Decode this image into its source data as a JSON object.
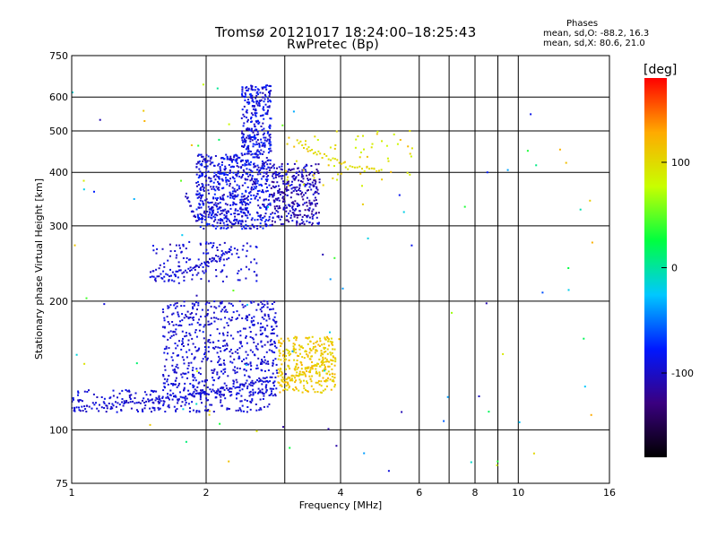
{
  "header": {
    "title": "Tromsø 20121017 18:24:00–18:25:43",
    "subtitle": "RwPretec (Bp)",
    "phase_title": "Phases",
    "phase_o": "mean, sd,O: -88.2, 16.3",
    "phase_x": "mean, sd,X:  80.6, 21.0"
  },
  "colorbar": {
    "unit": "[deg]",
    "range": [
      -180,
      180
    ],
    "ticks": [
      100,
      0,
      -100
    ],
    "stops": [
      "#000000",
      "#3a0080",
      "#0018ff",
      "#00c8ff",
      "#00ff40",
      "#c8ff00",
      "#ffaa00",
      "#ff0000"
    ]
  },
  "chart_data": {
    "type": "scatter",
    "title": "Tromsø 20121017 18:24:00–18:25:43",
    "subtitle": "RwPretec (Bp)",
    "xlabel": "Frequency [MHz]",
    "ylabel": "Stationary phase Virtual Height [km]",
    "xscale": "log",
    "yscale": "log",
    "xlim": [
      1,
      16
    ],
    "ylim": [
      75,
      750
    ],
    "xticks": [
      1,
      2,
      4,
      6,
      8,
      10,
      16
    ],
    "xtick_labels": [
      "1",
      "2",
      "4",
      "6",
      "8",
      "10",
      "16"
    ],
    "xgrid": [
      2,
      3,
      4,
      6,
      7,
      8,
      9,
      10
    ],
    "yticks": [
      75,
      100,
      200,
      300,
      400,
      500,
      600,
      750
    ],
    "ytick_labels": [
      "75",
      "100",
      "200",
      "300",
      "400",
      "500",
      "600",
      "750"
    ],
    "ygrid": [
      100,
      200,
      300,
      400,
      500,
      600
    ],
    "grid": true,
    "color_variable": "phase [deg]",
    "traces": [
      {
        "name": "",
        "phase": -95,
        "points": [
          [
            1.0,
            112
          ],
          [
            1.2,
            114
          ],
          [
            1.4,
            116
          ],
          [
            1.6,
            118
          ],
          [
            1.8,
            120
          ],
          [
            2.0,
            122
          ],
          [
            2.2,
            125
          ],
          [
            2.5,
            128
          ],
          [
            2.8,
            131
          ]
        ]
      },
      {
        "name": "",
        "phase": -95,
        "points": [
          [
            1.5,
            226
          ],
          [
            1.7,
            232
          ],
          [
            1.9,
            240
          ],
          [
            2.1,
            250
          ],
          [
            2.3,
            262
          ]
        ]
      },
      {
        "name": "",
        "phase": -100,
        "points": [
          [
            1.8,
            355
          ],
          [
            1.9,
            310
          ],
          [
            2.1,
            340
          ],
          [
            2.3,
            300
          ],
          [
            2.5,
            360
          ],
          [
            2.7,
            420
          ],
          [
            3.0,
            380
          ],
          [
            3.4,
            350
          ]
        ]
      },
      {
        "name": "",
        "phase": 110,
        "points": [
          [
            2.9,
            128
          ],
          [
            3.1,
            132
          ],
          [
            3.4,
            138
          ],
          [
            3.8,
            145
          ]
        ]
      },
      {
        "name": "",
        "phase": 100,
        "points": [
          [
            3.2,
            470
          ],
          [
            3.6,
            440
          ],
          [
            4.2,
            410
          ],
          [
            5.0,
            400
          ]
        ]
      }
    ],
    "regions": [
      {
        "f": [
          1.0,
          2.8
        ],
        "h": [
          110,
          124
        ],
        "phase": [
          -105,
          -85
        ],
        "n": 220
      },
      {
        "f": [
          1.6,
          2.9
        ],
        "h": [
          120,
          200
        ],
        "phase": [
          -105,
          -85
        ],
        "n": 620
      },
      {
        "f": [
          1.5,
          2.6
        ],
        "h": [
          220,
          275
        ],
        "phase": [
          -105,
          -85
        ],
        "n": 140
      },
      {
        "f": [
          1.9,
          2.8
        ],
        "h": [
          295,
          440
        ],
        "phase": [
          -110,
          -70
        ],
        "n": 620
      },
      {
        "f": [
          2.4,
          2.8
        ],
        "h": [
          440,
          640
        ],
        "phase": [
          -110,
          -70
        ],
        "n": 280
      },
      {
        "f": [
          2.8,
          3.6
        ],
        "h": [
          300,
          420
        ],
        "phase": [
          -125,
          -85
        ],
        "n": 300
      },
      {
        "f": [
          2.9,
          3.9
        ],
        "h": [
          122,
          165
        ],
        "phase": [
          95,
          125
        ],
        "n": 300
      },
      {
        "f": [
          3.0,
          5.8
        ],
        "h": [
          370,
          500
        ],
        "phase": [
          80,
          120
        ],
        "n": 60
      },
      {
        "f": [
          1.0,
          15.0
        ],
        "h": [
          80,
          650
        ],
        "phase": [
          -120,
          130
        ],
        "n": 95
      }
    ]
  }
}
